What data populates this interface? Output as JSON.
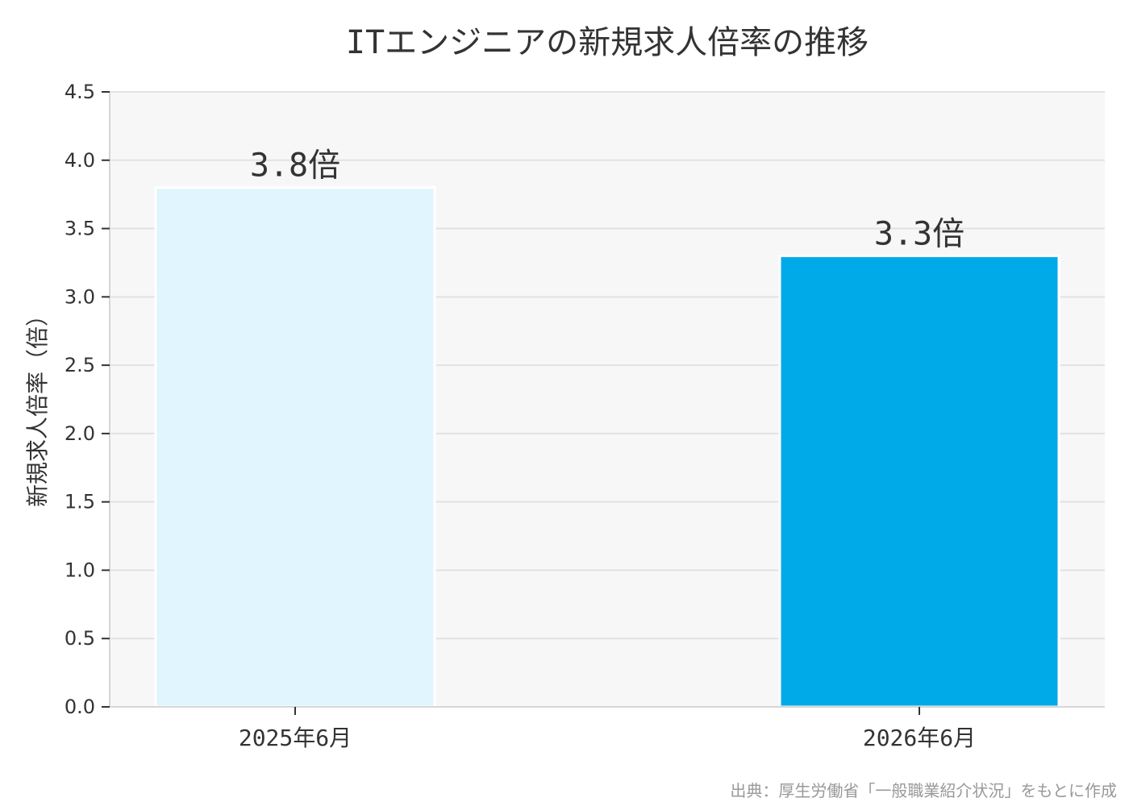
{
  "chart_data": {
    "type": "bar",
    "title": "ITエンジニアの新規求人倍率の推移",
    "ylabel": "新規求人倍率（倍）",
    "xlabel": "",
    "categories": [
      "2025年6月",
      "2026年6月"
    ],
    "values": [
      3.8,
      3.3
    ],
    "value_labels": [
      "3.8倍",
      "3.3倍"
    ],
    "ylim": [
      0,
      4.5
    ],
    "yticks": [
      "0.0",
      "0.5",
      "1.0",
      "1.5",
      "2.0",
      "2.5",
      "3.0",
      "3.5",
      "4.0",
      "4.5"
    ],
    "bar_colors": [
      "#e0f5fd",
      "#00aae8"
    ],
    "plot_background": "#f7f7f7",
    "grid_color": "#e2e2e2",
    "grid": true,
    "legend": "none"
  },
  "source": "出典：厚生労働省「一般職業紹介状況」をもとに作成"
}
